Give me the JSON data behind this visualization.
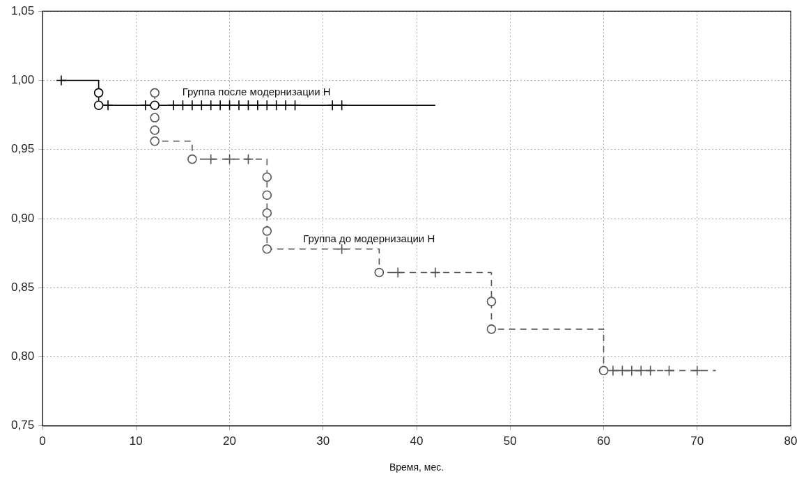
{
  "chart_data": {
    "type": "step",
    "xlabel": "Время, мес.",
    "xlim": [
      0,
      80
    ],
    "xticks": [
      0,
      10,
      20,
      30,
      40,
      50,
      60,
      70,
      80
    ],
    "ylim": [
      0.75,
      1.05
    ],
    "yticks": [
      {
        "value": 0.75,
        "label": "0,75"
      },
      {
        "value": 0.8,
        "label": "0,80"
      },
      {
        "value": 0.85,
        "label": "0,85"
      },
      {
        "value": 0.9,
        "label": "0,90"
      },
      {
        "value": 0.95,
        "label": "0,95"
      },
      {
        "value": 1.0,
        "label": "1,00"
      },
      {
        "value": 1.05,
        "label": "1,05"
      }
    ],
    "grid": true,
    "legend": false,
    "series": [
      {
        "name": "Группа после модернизации Н",
        "color": "#000000",
        "line_style": "solid",
        "marker": "none",
        "x": [
          2,
          6,
          42
        ],
        "values": [
          1.0,
          0.982,
          0.982
        ]
      },
      {
        "type": "scatter",
        "color": "#000000",
        "marker": "circle",
        "x": [
          6,
          6,
          12
        ],
        "values": [
          0.991,
          0.982,
          0.982
        ]
      },
      {
        "type": "scatter",
        "color": "#000000",
        "marker": "cross",
        "x": [
          2,
          7,
          11,
          14,
          15,
          16,
          17,
          18,
          19,
          20,
          21,
          22,
          23,
          24,
          25,
          26,
          27,
          31,
          32
        ],
        "values": [
          1.0,
          0.982,
          0.982,
          0.982,
          0.982,
          0.982,
          0.982,
          0.982,
          0.982,
          0.982,
          0.982,
          0.982,
          0.982,
          0.982,
          0.982,
          0.982,
          0.982,
          0.982,
          0.982
        ]
      },
      {
        "name": "Группа до модернизации Н",
        "color": "#555555",
        "line_style": "dashed",
        "marker": "none",
        "x": [
          12,
          12,
          16,
          24,
          36,
          48,
          60,
          72
        ],
        "values": [
          0.991,
          0.956,
          0.943,
          0.878,
          0.861,
          0.82,
          0.79,
          0.79
        ]
      },
      {
        "type": "scatter",
        "color": "#555555",
        "marker": "circle",
        "x": [
          12,
          12,
          12,
          12,
          16,
          24,
          24,
          24,
          24,
          24,
          36,
          48,
          48,
          60
        ],
        "values": [
          0.991,
          0.973,
          0.964,
          0.956,
          0.943,
          0.93,
          0.917,
          0.904,
          0.891,
          0.878,
          0.861,
          0.84,
          0.82,
          0.79
        ]
      },
      {
        "type": "scatter",
        "color": "#555555",
        "marker": "cross",
        "x": [
          18,
          20,
          22,
          32,
          38,
          42,
          61,
          62,
          63,
          64,
          65,
          67,
          70
        ],
        "values": [
          0.943,
          0.943,
          0.943,
          0.878,
          0.861,
          0.861,
          0.79,
          0.79,
          0.79,
          0.79,
          0.79,
          0.79,
          0.79
        ]
      }
    ]
  }
}
